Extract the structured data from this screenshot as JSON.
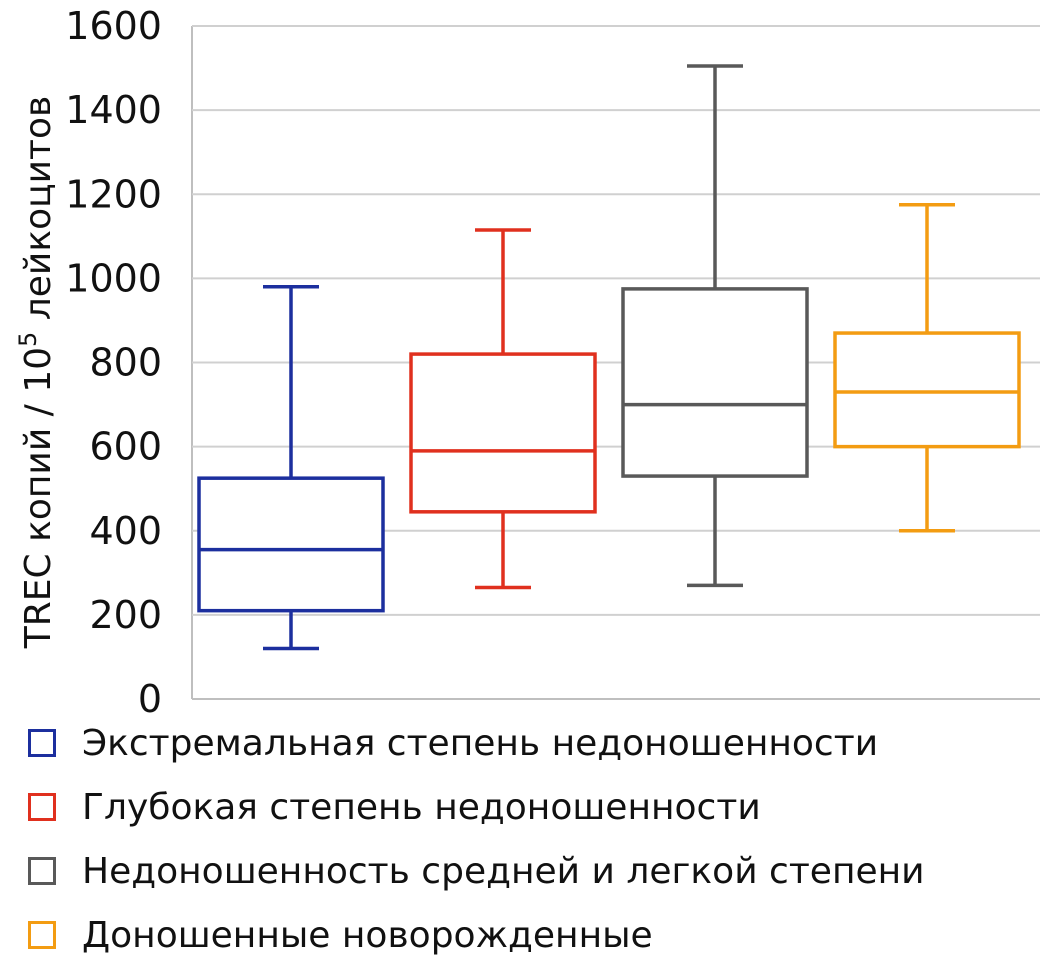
{
  "chart_data": {
    "type": "boxplot",
    "ylabel": "TREC копий / 10",
    "ylabel_sup": "5",
    "ylabel_suffix": " лейкоцитов",
    "ylim": [
      0,
      1600
    ],
    "yticks": [
      0,
      200,
      400,
      600,
      800,
      1000,
      1200,
      1400,
      1600
    ],
    "grid": true,
    "legend_position": "bottom",
    "series": [
      {
        "name": "Экстремальная степень недоношенности",
        "color": "#1c2f9e",
        "min": 120,
        "q1": 210,
        "median": 355,
        "q3": 525,
        "max": 980
      },
      {
        "name": "Глубокая степень недоношенности",
        "color": "#e0301e",
        "min": 265,
        "q1": 445,
        "median": 590,
        "q3": 820,
        "max": 1115
      },
      {
        "name": "Недоношенность средней и легкой степени",
        "color": "#595959",
        "min": 270,
        "q1": 530,
        "median": 700,
        "q3": 975,
        "max": 1505
      },
      {
        "name": "Доношенные новорожденные",
        "color": "#f39c12",
        "min": 400,
        "q1": 600,
        "median": 730,
        "q3": 870,
        "max": 1175
      }
    ]
  }
}
